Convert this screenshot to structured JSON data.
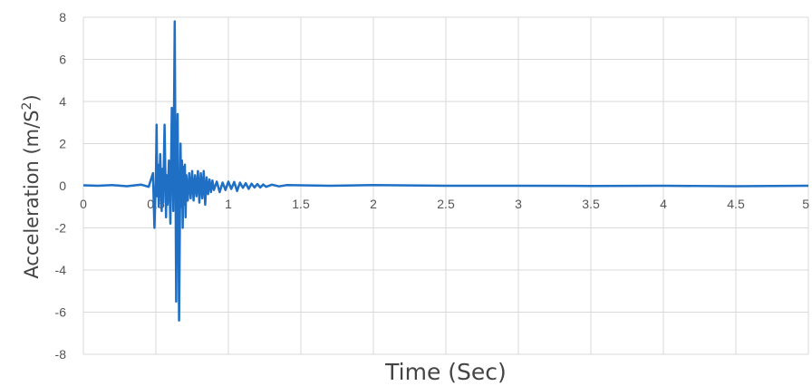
{
  "chart_data": {
    "type": "line",
    "title": "",
    "xlabel": "Time (Sec)",
    "ylabel_main": "Acceleration (m/S",
    "ylabel_sup": "2",
    "ylabel_close": ")",
    "xlim": [
      0,
      5
    ],
    "ylim": [
      -8,
      8
    ],
    "xticks": [
      "0",
      "0.5",
      "1",
      "1.5",
      "2",
      "2.5",
      "3",
      "3.5",
      "4",
      "4.5",
      "5"
    ],
    "yticks": [
      "8",
      "6",
      "4",
      "2",
      "0",
      "-2",
      "-4",
      "-6",
      "-8"
    ],
    "grid": true,
    "legend": "none",
    "line_color": "#1f6fc5",
    "series": [
      {
        "x": [
          0,
          0.1,
          0.2,
          0.3,
          0.4,
          0.45,
          0.48,
          0.49,
          0.5,
          0.505,
          0.51,
          0.515,
          0.52,
          0.53,
          0.54,
          0.545,
          0.55,
          0.56,
          0.57,
          0.575,
          0.58,
          0.59,
          0.6,
          0.61,
          0.62,
          0.63,
          0.64,
          0.645,
          0.65,
          0.66,
          0.67,
          0.675,
          0.68,
          0.685,
          0.69,
          0.695,
          0.7,
          0.705,
          0.71,
          0.72,
          0.73,
          0.74,
          0.75,
          0.76,
          0.77,
          0.78,
          0.79,
          0.8,
          0.81,
          0.82,
          0.83,
          0.84,
          0.85,
          0.86,
          0.87,
          0.88,
          0.89,
          0.9,
          0.92,
          0.94,
          0.96,
          0.98,
          1.0,
          1.02,
          1.04,
          1.06,
          1.08,
          1.1,
          1.12,
          1.14,
          1.16,
          1.18,
          1.2,
          1.22,
          1.24,
          1.26,
          1.3,
          1.35,
          1.4,
          1.5,
          1.7,
          2.0,
          2.5,
          3.0,
          3.5,
          4.0,
          4.5,
          5.0
        ],
        "y": [
          0.02,
          0.0,
          0.03,
          -0.02,
          0.05,
          -0.05,
          0.6,
          -2.0,
          0.3,
          2.9,
          -0.5,
          1.0,
          -1.0,
          1.5,
          -1.2,
          0.8,
          -0.8,
          2.9,
          -1.5,
          0.5,
          -0.9,
          1.2,
          -1.8,
          3.7,
          -1.2,
          7.8,
          -5.5,
          0.5,
          3.4,
          -6.4,
          2.0,
          -1.0,
          1.2,
          -2.0,
          0.9,
          -0.9,
          1.0,
          -1.5,
          0.5,
          -0.7,
          0.6,
          -0.6,
          0.7,
          -0.7,
          0.5,
          -0.5,
          0.7,
          -0.8,
          0.6,
          -0.6,
          0.7,
          -0.9,
          0.4,
          -0.4,
          0.3,
          -0.3,
          0.25,
          -0.2,
          0.2,
          -0.3,
          0.15,
          -0.2,
          0.2,
          -0.15,
          0.18,
          -0.25,
          0.15,
          -0.1,
          0.12,
          -0.15,
          0.1,
          -0.08,
          0.08,
          -0.08,
          0.06,
          -0.05,
          0.05,
          -0.03,
          0.03,
          0.02,
          0.0,
          0.03,
          0.0,
          0.0,
          -0.01,
          0.0,
          -0.02,
          0.0
        ]
      }
    ]
  }
}
